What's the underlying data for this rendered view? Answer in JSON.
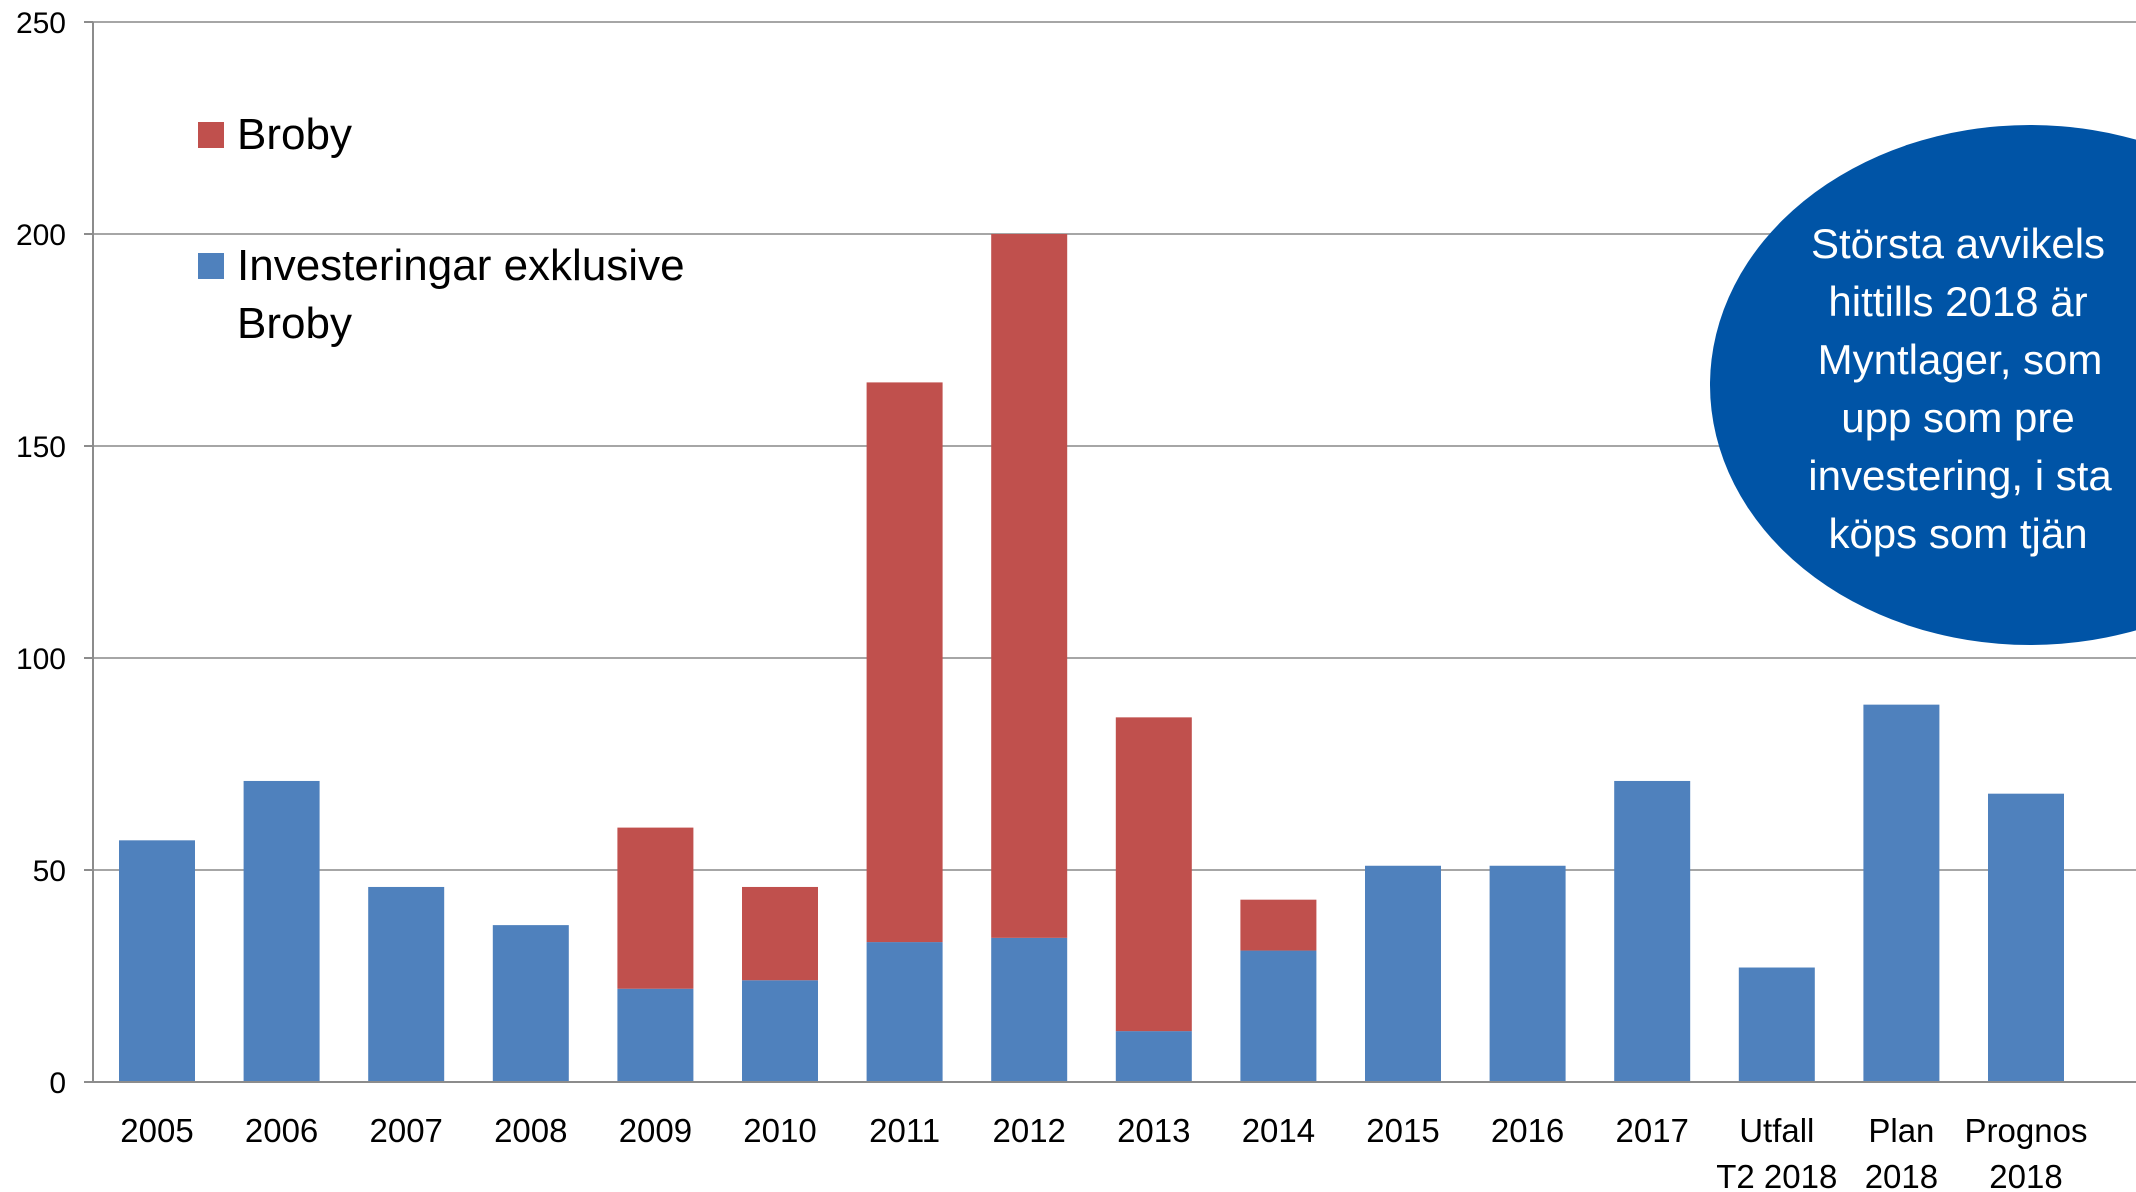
{
  "chart_data": {
    "type": "bar",
    "stacked": true,
    "categories": [
      [
        "2005"
      ],
      [
        "2006"
      ],
      [
        "2007"
      ],
      [
        "2008"
      ],
      [
        "2009"
      ],
      [
        "2010"
      ],
      [
        "2011"
      ],
      [
        "2012"
      ],
      [
        "2013"
      ],
      [
        "2014"
      ],
      [
        "2015"
      ],
      [
        "2016"
      ],
      [
        "2017"
      ],
      [
        "Utfall",
        "T2 2018"
      ],
      [
        "Plan",
        "2018"
      ],
      [
        "Prognos",
        "2018"
      ]
    ],
    "series": [
      {
        "name": "Investeringar exklusive Broby",
        "color": "#4f81bd",
        "values": [
          57,
          71,
          46,
          37,
          22,
          24,
          33,
          34,
          12,
          31,
          51,
          51,
          71,
          27,
          89,
          68
        ]
      },
      {
        "name": "Broby",
        "color": "#c0504d",
        "values": [
          0,
          0,
          0,
          0,
          38,
          22,
          132,
          166,
          74,
          12,
          0,
          0,
          0,
          0,
          0,
          0
        ]
      }
    ],
    "legend_order": [
      "Broby",
      "Investeringar exklusive Broby"
    ],
    "legend_position": "top-left",
    "ylim": [
      0,
      250
    ],
    "yticks": [
      0,
      50,
      100,
      150,
      200,
      250
    ],
    "grid": true,
    "title": "",
    "xlabel": "",
    "ylabel": "",
    "annotation": {
      "lines": [
        "Största avvikels",
        "hittills 2018 är",
        "Myntlager, som",
        "upp som pre",
        "investering, i sta",
        "köps som tjän"
      ],
      "color": "#0054a6"
    }
  }
}
